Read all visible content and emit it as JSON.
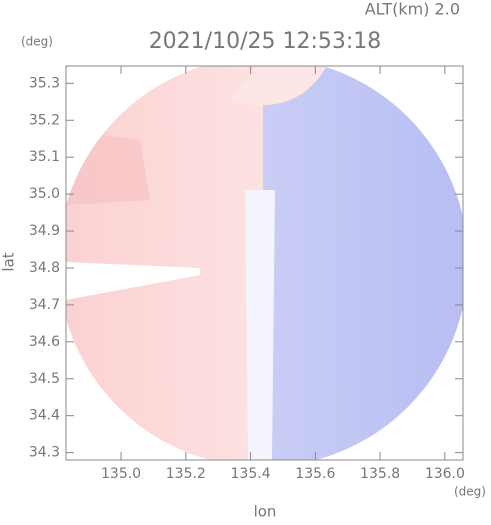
{
  "chart_data": {
    "type": "radar-field",
    "altitude": "ALT(km) 2.0",
    "title": "2021/10/25 12:53:18",
    "y_unit": "(deg)",
    "x_unit": "(deg)",
    "y_label": "lat",
    "x_label": "lon",
    "xlim": [
      134.83,
      136.056
    ],
    "ylim": [
      34.28,
      35.347
    ],
    "xticks": [
      {
        "value": 135.0,
        "label": "135.0"
      },
      135.2,
      135.4,
      135.6,
      135.8,
      {
        "value": 136.0,
        "label": "136.0"
      }
    ],
    "yticks": [
      34.3,
      34.4,
      34.5,
      34.6,
      34.7,
      34.8,
      34.9,
      {
        "value": 35.0,
        "label": "35.0"
      },
      35.1,
      35.2,
      35.3
    ]
  }
}
